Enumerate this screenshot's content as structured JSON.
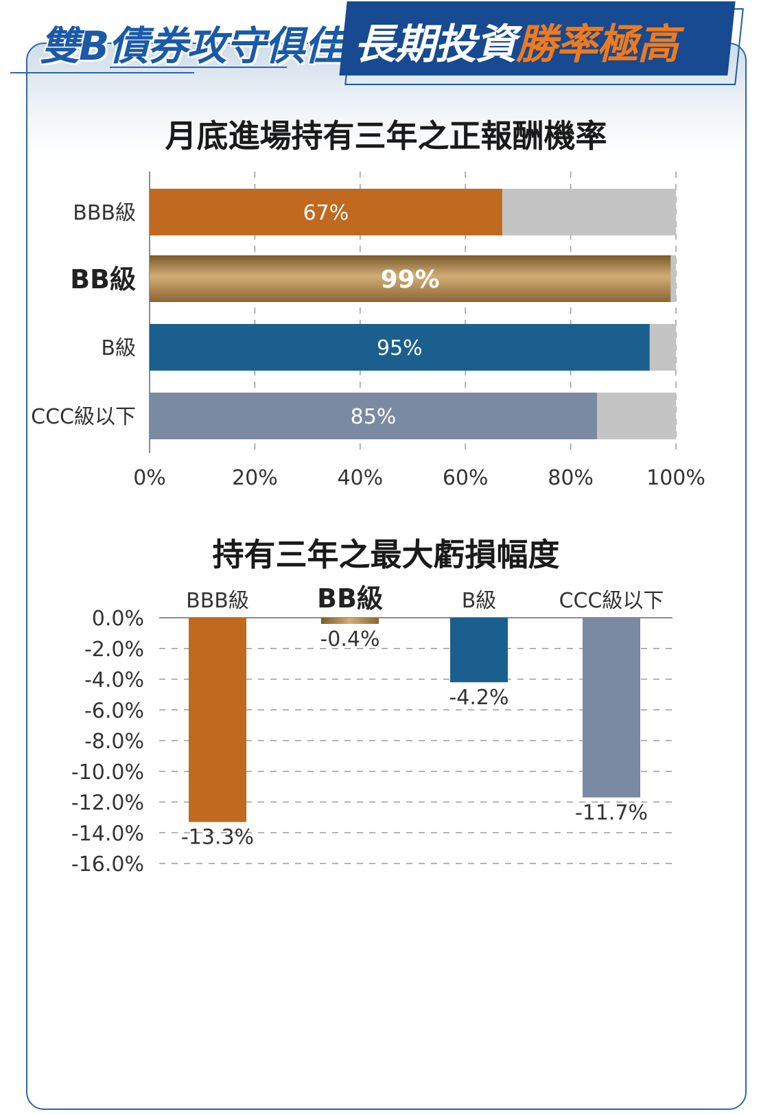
{
  "header": {
    "left_title": "雙B債券攻守俱佳",
    "right_title_white": "長期投資",
    "right_title_orange": "勝率極高"
  },
  "colors": {
    "bbb": "#c0691f",
    "bb_gold": "#b8935a",
    "b": "#1b5f8e",
    "ccc": "#7b8aa3",
    "remainder": "#c4c4c4",
    "grid": "#9a9a9a"
  },
  "chart_data": [
    {
      "type": "bar",
      "orientation": "horizontal",
      "stacked_to": 100,
      "title": "月底進場持有三年之正報酬機率",
      "categories": [
        "BBB級",
        "BB級",
        "B級",
        "CCC級以下"
      ],
      "values": [
        67,
        99,
        95,
        85
      ],
      "data_labels": [
        "67%",
        "99%",
        "95%",
        "85%"
      ],
      "highlight_category": "BB級",
      "xlim": [
        0,
        100
      ],
      "x_ticks": [
        0,
        20,
        40,
        60,
        80,
        100
      ],
      "x_tick_labels": [
        "0%",
        "20%",
        "40%",
        "60%",
        "80%",
        "100%"
      ],
      "grid": "vertical dashed"
    },
    {
      "type": "bar",
      "orientation": "vertical",
      "title": "持有三年之最大虧損幅度",
      "categories": [
        "BBB級",
        "BB級",
        "B級",
        "CCC級以下"
      ],
      "values": [
        -13.3,
        -0.4,
        -4.2,
        -11.7
      ],
      "data_labels": [
        "-13.3%",
        "-0.4%",
        "-4.2%",
        "-11.7%"
      ],
      "highlight_category": "BB級",
      "ylim": [
        -16,
        0
      ],
      "y_ticks": [
        0,
        -2,
        -4,
        -6,
        -8,
        -10,
        -12,
        -14,
        -16
      ],
      "y_tick_labels": [
        "0.0%",
        "-2.0%",
        "-4.0%",
        "-6.0%",
        "-8.0%",
        "-10.0%",
        "-12.0%",
        "-14.0%",
        "-16.0%"
      ],
      "grid": "horizontal dashed"
    }
  ]
}
